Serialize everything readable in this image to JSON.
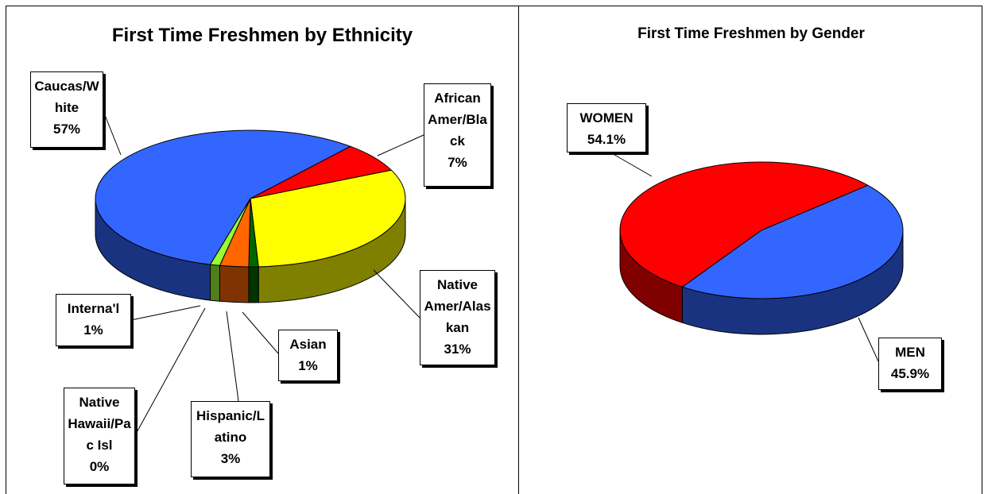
{
  "chart_data": [
    {
      "type": "pie",
      "title": "First Time Freshmen by Ethnicity",
      "categories": [
        "Caucas/White",
        "African Amer/Black",
        "Native Amer/Alaskan",
        "Asian",
        "Hispanic/Latino",
        "Native Hawaii/Pac Isl",
        "Interna'l"
      ],
      "values": [
        57,
        7,
        31,
        1,
        3,
        0,
        1
      ],
      "value_labels": [
        "57%",
        "7%",
        "31%",
        "1%",
        "3%",
        "0%",
        "1%"
      ],
      "colors": [
        "#3366ff",
        "#ff0000",
        "#ffff00",
        "#006600",
        "#ff6600",
        "#993366",
        "#99ff33"
      ]
    },
    {
      "type": "pie",
      "title": "First Time Freshmen by Gender",
      "categories": [
        "WOMEN",
        "MEN"
      ],
      "values": [
        54.1,
        45.9
      ],
      "value_labels": [
        "54.1%",
        "45.9%"
      ],
      "colors": [
        "#ff0000",
        "#3366ff"
      ]
    }
  ]
}
